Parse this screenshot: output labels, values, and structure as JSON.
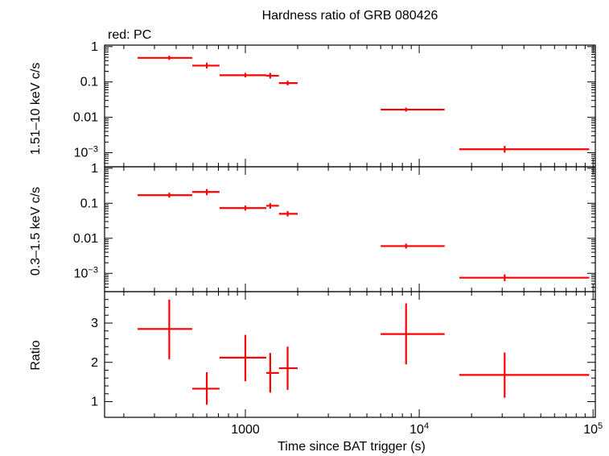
{
  "title": "Hardness ratio of GRB 080426",
  "legend_note": "red: PC",
  "colors": {
    "series": "#ff0000",
    "axes": "#000000"
  },
  "chart_data": [
    {
      "type": "scatter",
      "panel": "hard",
      "ylabel": "1.51–10 keV c/s",
      "yscale": "log",
      "ylim": [
        0.0004,
        1.1
      ],
      "ytick_labels": [
        {
          "v": 1,
          "label": "1",
          "sup": ""
        },
        {
          "v": 0.1,
          "label": "0.1",
          "sup": ""
        },
        {
          "v": 0.01,
          "label": "0.01",
          "sup": ""
        },
        {
          "v": 0.001,
          "label": "10",
          "sup": "−3"
        }
      ],
      "points": [
        {
          "x": 365,
          "xlo": 240,
          "xhi": 495,
          "y": 0.48,
          "ylo": 0.42,
          "yhi": 0.55
        },
        {
          "x": 600,
          "xlo": 495,
          "xhi": 710,
          "y": 0.29,
          "ylo": 0.24,
          "yhi": 0.35
        },
        {
          "x": 1000,
          "xlo": 710,
          "xhi": 1320,
          "y": 0.155,
          "ylo": 0.135,
          "yhi": 0.18
        },
        {
          "x": 1390,
          "xlo": 1320,
          "xhi": 1560,
          "y": 0.15,
          "ylo": 0.125,
          "yhi": 0.18
        },
        {
          "x": 1750,
          "xlo": 1560,
          "xhi": 2000,
          "y": 0.093,
          "ylo": 0.08,
          "yhi": 0.108
        },
        {
          "x": 8400,
          "xlo": 6000,
          "xhi": 14000,
          "y": 0.0165,
          "ylo": 0.0145,
          "yhi": 0.0188
        },
        {
          "x": 31000,
          "xlo": 17000,
          "xhi": 95000,
          "y": 0.00125,
          "ylo": 0.001,
          "yhi": 0.00155
        }
      ]
    },
    {
      "type": "scatter",
      "panel": "soft",
      "ylabel": "0.3–1.5 keV c/s",
      "yscale": "log",
      "ylim": [
        0.0003,
        1.1
      ],
      "ytick_labels": [
        {
          "v": 1,
          "label": "1",
          "sup": ""
        },
        {
          "v": 0.1,
          "label": "0.1",
          "sup": ""
        },
        {
          "v": 0.01,
          "label": "0.01",
          "sup": ""
        },
        {
          "v": 0.001,
          "label": "10",
          "sup": "−3"
        }
      ],
      "points": [
        {
          "x": 365,
          "xlo": 240,
          "xhi": 495,
          "y": 0.17,
          "ylo": 0.145,
          "yhi": 0.2
        },
        {
          "x": 600,
          "xlo": 495,
          "xhi": 710,
          "y": 0.21,
          "ylo": 0.17,
          "yhi": 0.255
        },
        {
          "x": 1000,
          "xlo": 710,
          "xhi": 1320,
          "y": 0.073,
          "ylo": 0.062,
          "yhi": 0.086
        },
        {
          "x": 1390,
          "xlo": 1320,
          "xhi": 1560,
          "y": 0.085,
          "ylo": 0.07,
          "yhi": 0.1
        },
        {
          "x": 1750,
          "xlo": 1560,
          "xhi": 2000,
          "y": 0.05,
          "ylo": 0.042,
          "yhi": 0.06
        },
        {
          "x": 8400,
          "xlo": 6000,
          "xhi": 14000,
          "y": 0.006,
          "ylo": 0.0051,
          "yhi": 0.007
        },
        {
          "x": 31000,
          "xlo": 17000,
          "xhi": 95000,
          "y": 0.00075,
          "ylo": 0.0006,
          "yhi": 0.00093
        }
      ]
    },
    {
      "type": "scatter",
      "panel": "ratio",
      "ylabel": "Ratio",
      "yscale": "linear",
      "ylim": [
        0.6,
        3.8
      ],
      "ytick_labels": [
        {
          "v": 1,
          "label": "1",
          "sup": ""
        },
        {
          "v": 2,
          "label": "2",
          "sup": ""
        },
        {
          "v": 3,
          "label": "3",
          "sup": ""
        }
      ],
      "points": [
        {
          "x": 365,
          "xlo": 240,
          "xhi": 495,
          "y": 2.85,
          "ylo": 2.08,
          "yhi": 3.6
        },
        {
          "x": 600,
          "xlo": 495,
          "xhi": 710,
          "y": 1.33,
          "ylo": 0.92,
          "yhi": 1.75
        },
        {
          "x": 1000,
          "xlo": 710,
          "xhi": 1320,
          "y": 2.12,
          "ylo": 1.52,
          "yhi": 2.7
        },
        {
          "x": 1390,
          "xlo": 1320,
          "xhi": 1560,
          "y": 1.73,
          "ylo": 1.23,
          "yhi": 2.24
        },
        {
          "x": 1750,
          "xlo": 1560,
          "xhi": 2000,
          "y": 1.85,
          "ylo": 1.3,
          "yhi": 2.4
        },
        {
          "x": 8400,
          "xlo": 6000,
          "xhi": 14000,
          "y": 2.72,
          "ylo": 1.95,
          "yhi": 3.5
        },
        {
          "x": 31000,
          "xlo": 17000,
          "xhi": 95000,
          "y": 1.68,
          "ylo": 1.1,
          "yhi": 2.25
        }
      ]
    }
  ],
  "xaxis": {
    "label": "Time since BAT trigger (s)",
    "scale": "log",
    "xlim": [
      155,
      103000
    ],
    "tick_labels": [
      {
        "v": 1000,
        "label": "1000",
        "sup": ""
      },
      {
        "v": 10000,
        "label": "10",
        "sup": "4"
      },
      {
        "v": 100000,
        "label": "10",
        "sup": "5"
      }
    ]
  }
}
